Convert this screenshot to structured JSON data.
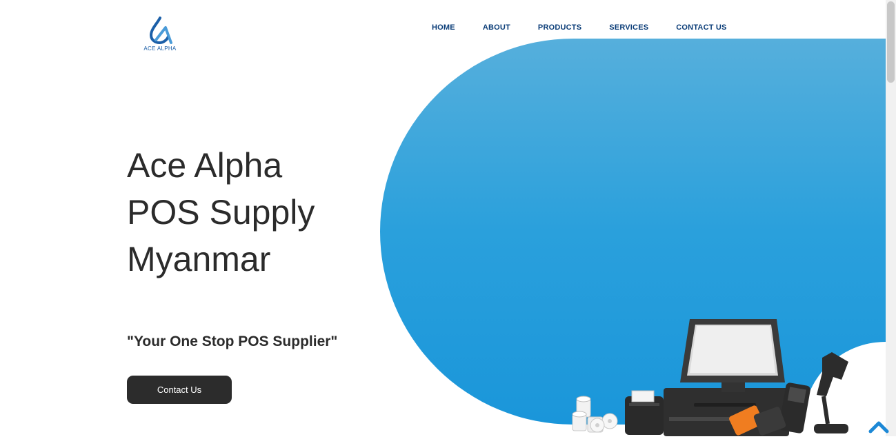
{
  "brand": {
    "logo_text": "ACE ALPHA"
  },
  "nav": {
    "items": [
      {
        "label": "HOME"
      },
      {
        "label": "ABOUT"
      },
      {
        "label": "PRODUCTS"
      },
      {
        "label": "SERVICES"
      },
      {
        "label": "CONTACT US"
      }
    ]
  },
  "hero": {
    "title_lines": [
      "Ace Alpha",
      "POS Supply",
      "Myanmar"
    ],
    "tagline": "\"Your One Stop POS Supplier\"",
    "cta_label": "Contact Us",
    "image_icon": "pos-hardware-illustration"
  },
  "colors": {
    "brand_blue": "#1b5fa8",
    "nav_text": "#0b3d78",
    "hero_gradient_top": "#56afdc",
    "hero_gradient_bottom": "#1a96da",
    "button_bg": "#2c2c2c",
    "scroll_top_arrow": "#1c88d6"
  },
  "scroll_top": {
    "icon": "chevron-up-icon"
  }
}
